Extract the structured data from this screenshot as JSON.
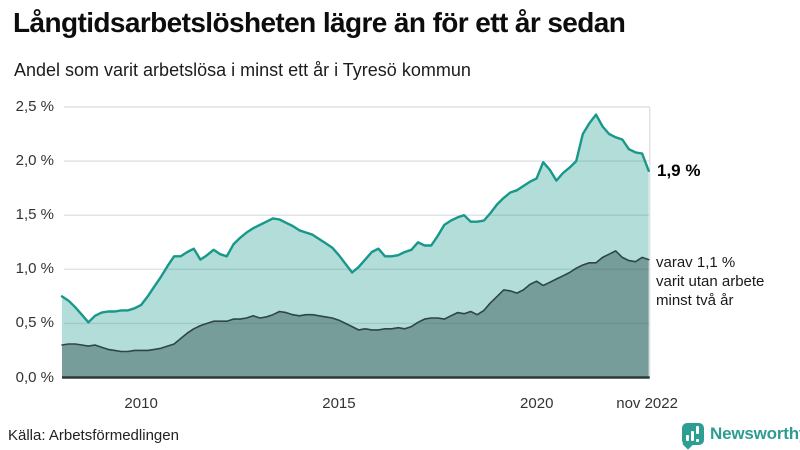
{
  "header": {
    "title": "Långtidsarbetslösheten lägre än för ett år sedan",
    "subtitle": "Andel som varit arbetslösa i minst ett år i Tyresö kommun"
  },
  "chart_data": {
    "type": "area",
    "title": "Långtidsarbetslösheten lägre än för ett år sedan",
    "subtitle": "Andel som varit arbetslösa i minst ett år i Tyresö kommun",
    "x_start": 2008.0,
    "x_end": 2022.83,
    "x_step_years": 0.1667,
    "ylim": [
      0,
      2.5
    ],
    "grid": true,
    "y_ticks": [
      {
        "v": 0.0,
        "label": "0,0 %"
      },
      {
        "v": 0.5,
        "label": "0,5 %"
      },
      {
        "v": 1.0,
        "label": "1,0 %"
      },
      {
        "v": 1.5,
        "label": "1,5 %"
      },
      {
        "v": 2.0,
        "label": "2,0 %"
      },
      {
        "v": 2.5,
        "label": "2,5 %"
      }
    ],
    "x_ticks": [
      {
        "v": 2010,
        "label": "2010"
      },
      {
        "v": 2015,
        "label": "2015"
      },
      {
        "v": 2020,
        "label": "2020"
      },
      {
        "v": 2022.79,
        "label": "nov 2022"
      }
    ],
    "series": [
      {
        "name": "arbetslösa minst ett år",
        "line_color": "#17988a",
        "line_width": 2.4,
        "fill_color": "rgba(24,152,138,0.33)",
        "values": [
          0.75,
          0.71,
          0.65,
          0.58,
          0.51,
          0.57,
          0.6,
          0.61,
          0.61,
          0.62,
          0.62,
          0.64,
          0.67,
          0.75,
          0.84,
          0.93,
          1.03,
          1.12,
          1.12,
          1.16,
          1.19,
          1.09,
          1.13,
          1.18,
          1.14,
          1.12,
          1.23,
          1.29,
          1.34,
          1.38,
          1.41,
          1.44,
          1.47,
          1.46,
          1.43,
          1.4,
          1.36,
          1.34,
          1.32,
          1.28,
          1.24,
          1.2,
          1.13,
          1.05,
          0.97,
          1.02,
          1.09,
          1.16,
          1.19,
          1.12,
          1.12,
          1.13,
          1.16,
          1.18,
          1.25,
          1.22,
          1.22,
          1.31,
          1.41,
          1.45,
          1.48,
          1.5,
          1.44,
          1.44,
          1.45,
          1.52,
          1.6,
          1.66,
          1.71,
          1.73,
          1.77,
          1.81,
          1.84,
          1.99,
          1.92,
          1.82,
          1.89,
          1.94,
          2.0,
          2.25,
          2.35,
          2.43,
          2.32,
          2.25,
          2.22,
          2.2,
          2.11,
          2.08,
          2.07,
          1.91
        ]
      },
      {
        "name": "varav utan arbete minst två år",
        "line_color": "#2e4649",
        "line_width": 1.6,
        "fill_color": "rgba(45,82,80,0.46)",
        "values": [
          0.3,
          0.31,
          0.31,
          0.3,
          0.29,
          0.3,
          0.28,
          0.26,
          0.25,
          0.24,
          0.24,
          0.25,
          0.25,
          0.25,
          0.26,
          0.27,
          0.29,
          0.31,
          0.36,
          0.41,
          0.45,
          0.48,
          0.5,
          0.52,
          0.52,
          0.52,
          0.54,
          0.54,
          0.55,
          0.57,
          0.55,
          0.56,
          0.58,
          0.61,
          0.6,
          0.58,
          0.57,
          0.58,
          0.58,
          0.57,
          0.56,
          0.55,
          0.53,
          0.5,
          0.47,
          0.44,
          0.45,
          0.44,
          0.44,
          0.45,
          0.45,
          0.46,
          0.45,
          0.47,
          0.51,
          0.54,
          0.55,
          0.55,
          0.54,
          0.57,
          0.6,
          0.59,
          0.61,
          0.58,
          0.62,
          0.69,
          0.75,
          0.81,
          0.8,
          0.78,
          0.81,
          0.86,
          0.89,
          0.85,
          0.88,
          0.91,
          0.94,
          0.97,
          1.01,
          1.04,
          1.06,
          1.06,
          1.11,
          1.14,
          1.17,
          1.11,
          1.08,
          1.07,
          1.11,
          1.09
        ]
      }
    ],
    "annotations": {
      "end_value": "1,9 %",
      "sub": [
        "varav 1,1 %",
        "varit utan arbete",
        "minst två år"
      ]
    },
    "colors": {
      "grid": "#dfe1e7",
      "baseline": "#2c3a3a",
      "tick_text": "#333333",
      "accent_teal": "#17988a",
      "dark_slate": "#2e4649"
    },
    "legend_position": "none"
  },
  "footer": {
    "source": "Källa: Arbetsförmedlingen",
    "brand": "Newsworthy",
    "brand_color": "#2f9c92"
  }
}
